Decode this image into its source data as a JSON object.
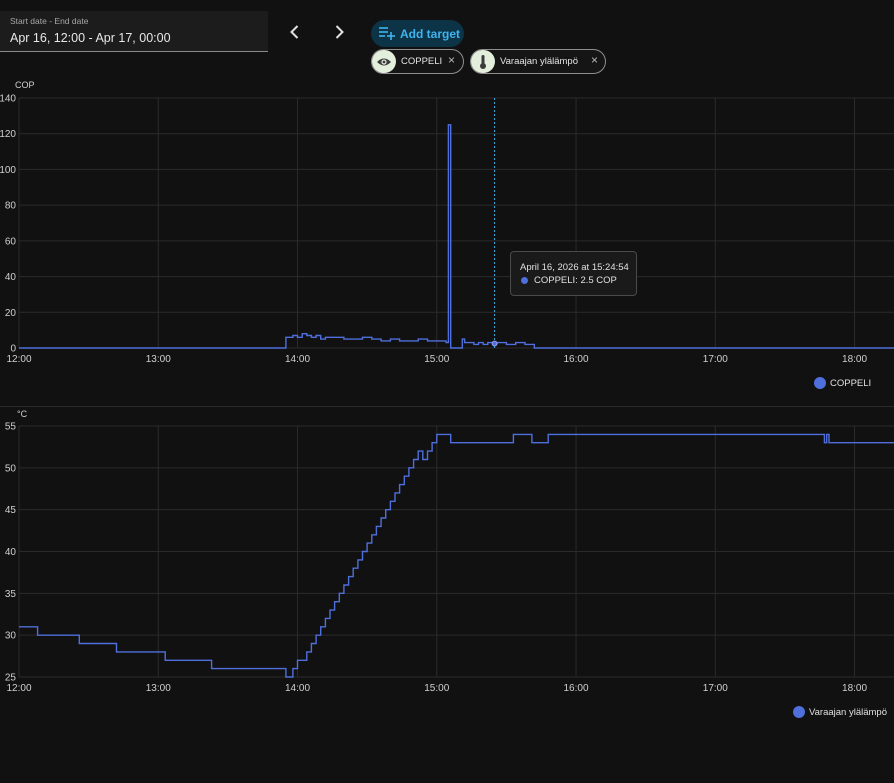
{
  "date_range": {
    "caption": "Start date - End date",
    "value": "Apr 16, 12:00 - Apr 17, 00:00"
  },
  "nav": {
    "prev_icon": "chevron-left-icon",
    "next_icon": "chevron-right-icon"
  },
  "add_target": {
    "label": "Add target",
    "icon": "playlist-plus-icon",
    "color": "#3fb4ef"
  },
  "targets": [
    {
      "label": "COPPELI",
      "icon": "eye-icon",
      "close": "×"
    },
    {
      "label": "Varaajan ylälämpö",
      "icon": "thermometer-icon",
      "close": "×"
    }
  ],
  "colors": {
    "series": "#4f6fdc",
    "background": "#111111",
    "grid": "#2b2b2b"
  },
  "chart_data": [
    {
      "type": "line",
      "step": true,
      "ylabel": "COP",
      "ylim": [
        0,
        140
      ],
      "yticks": [
        "0",
        "20",
        "40",
        "60",
        "80",
        "100",
        "120",
        "140"
      ],
      "xlim": [
        "12:00",
        "18:17"
      ],
      "xticks": [
        "12:00",
        "13:00",
        "14:00",
        "15:00",
        "16:00",
        "17:00",
        "18:00"
      ],
      "legend_position": "bottom-right",
      "grid": true,
      "series": [
        {
          "name": "COPPELI",
          "x": [
            "12:00",
            "13:54",
            "13:55",
            "13:58",
            "14:00",
            "14:02",
            "14:04",
            "14:06",
            "14:08",
            "14:10",
            "14:12",
            "14:16",
            "14:20",
            "14:24",
            "14:28",
            "14:32",
            "14:36",
            "14:40",
            "14:44",
            "14:48",
            "14:52",
            "14:56",
            "15:00",
            "15:03",
            "15:04",
            "15:05",
            "15:06",
            "15:07",
            "15:11",
            "15:12",
            "15:14",
            "15:16",
            "15:18",
            "15:20",
            "15:22",
            "15:24",
            "15:26",
            "15:28",
            "15:30",
            "15:32",
            "15:34",
            "15:36",
            "15:38",
            "15:40",
            "15:42",
            "18:17"
          ],
          "y": [
            0,
            0,
            6,
            7,
            6,
            8,
            7,
            6,
            7,
            5,
            6,
            6,
            5,
            5,
            6,
            5,
            4,
            5,
            4,
            4,
            5,
            4,
            4,
            4,
            3,
            125,
            0,
            0,
            5,
            3,
            3,
            2,
            3,
            2,
            3,
            2.5,
            3,
            3,
            2,
            2,
            3,
            3,
            2,
            2,
            0,
            0
          ]
        }
      ]
    },
    {
      "type": "line",
      "step": true,
      "ylabel": "°C",
      "ylim": [
        25,
        55
      ],
      "yticks": [
        "25",
        "30",
        "35",
        "40",
        "45",
        "50",
        "55"
      ],
      "xlim": [
        "12:00",
        "18:17"
      ],
      "xticks": [
        "12:00",
        "13:00",
        "14:00",
        "15:00",
        "16:00",
        "17:00",
        "18:00"
      ],
      "legend_position": "bottom-right",
      "grid": true,
      "series": [
        {
          "name": "Varaajan ylälämpö",
          "x": [
            "12:00",
            "12:08",
            "12:26",
            "12:42",
            "13:03",
            "13:23",
            "13:55",
            "13:58",
            "14:00",
            "14:04",
            "14:06",
            "14:08",
            "14:10",
            "14:12",
            "14:14",
            "14:16",
            "14:18",
            "14:20",
            "14:22",
            "14:24",
            "14:26",
            "14:28",
            "14:30",
            "14:32",
            "14:34",
            "14:36",
            "14:38",
            "14:40",
            "14:42",
            "14:44",
            "14:46",
            "14:48",
            "14:50",
            "14:52",
            "14:54",
            "14:56",
            "14:58",
            "15:00",
            "15:02",
            "15:06",
            "15:33",
            "15:41",
            "15:48",
            "17:47",
            "17:48",
            "17:49",
            "17:50",
            "18:17"
          ],
          "y": [
            31,
            30,
            29,
            28,
            27,
            26,
            25,
            26,
            27,
            28,
            29,
            30,
            31,
            32,
            33,
            34,
            35,
            36,
            37,
            38,
            39,
            40,
            41,
            42,
            43,
            44,
            45,
            46,
            47,
            48,
            49,
            50,
            51,
            52,
            51,
            52,
            53,
            54,
            54,
            53,
            54,
            53,
            54,
            53,
            54,
            53,
            53,
            53
          ]
        }
      ]
    }
  ],
  "tooltip": {
    "title": "April 16, 2026 at 15:24:54",
    "series": "COPPELI: 2.5 COP",
    "x": "15:24:54",
    "y": 2.5
  }
}
